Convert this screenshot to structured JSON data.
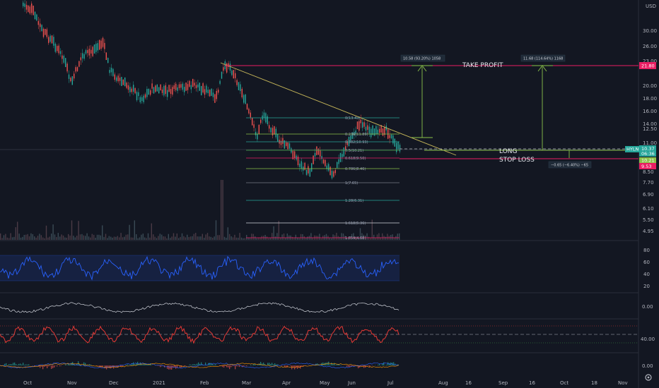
{
  "currency": "USD",
  "price_axis": [
    "30.00",
    "26.00",
    "23.00",
    "20.00",
    "18.00",
    "16.00",
    "14.00",
    "12.50",
    "11.00",
    "9.50",
    "8.50",
    "7.70",
    "6.90",
    "6.10",
    "5.50",
    "4.95"
  ],
  "time_axis": [
    "Oct",
    "Nov",
    "Dec",
    "2021",
    "Feb",
    "Mar",
    "Apr",
    "May",
    "Jun",
    "Jul",
    "Aug",
    "16",
    "Sep",
    "16",
    "Oct",
    "18",
    "Nov"
  ],
  "fib_levels": [
    "0(13.43)",
    "0.236(11.89)",
    "0.382(10.93)",
    "0.5(10.21)",
    "0.618(9.50)",
    "0.786(8.46)",
    "1(7.65)",
    "1.28(6.31)",
    "1.618(5.36)",
    "1.854(4.68)"
  ],
  "annotations": {
    "take_profit": "TAKE PROFIT",
    "long": "LONG",
    "stop_loss": "STOP LOSS"
  },
  "measures": [
    "10.58 (93.20%) 1058",
    "11.68 (114.64%) 1168",
    "−0.65 (−6.40%) −65"
  ],
  "price_tags": {
    "take_profit": "21.80",
    "ticker": "HYLN",
    "last": "10.37",
    "countdown": "06:36",
    "long": "10.21",
    "stop": "9.53"
  },
  "rsi_axis": [
    "80",
    "60",
    "40",
    "20"
  ],
  "osc1_axis": [
    "0.00"
  ],
  "osc2_axis": [
    "40.00"
  ],
  "macd_axis": [
    "0.00"
  ],
  "colors": {
    "background": "#131722",
    "take_profit": "#e91e63",
    "long_line": "#8bc34a",
    "trendline": "#c9b95a",
    "rsi": "#2962ff",
    "osc2": "#e53935"
  }
}
